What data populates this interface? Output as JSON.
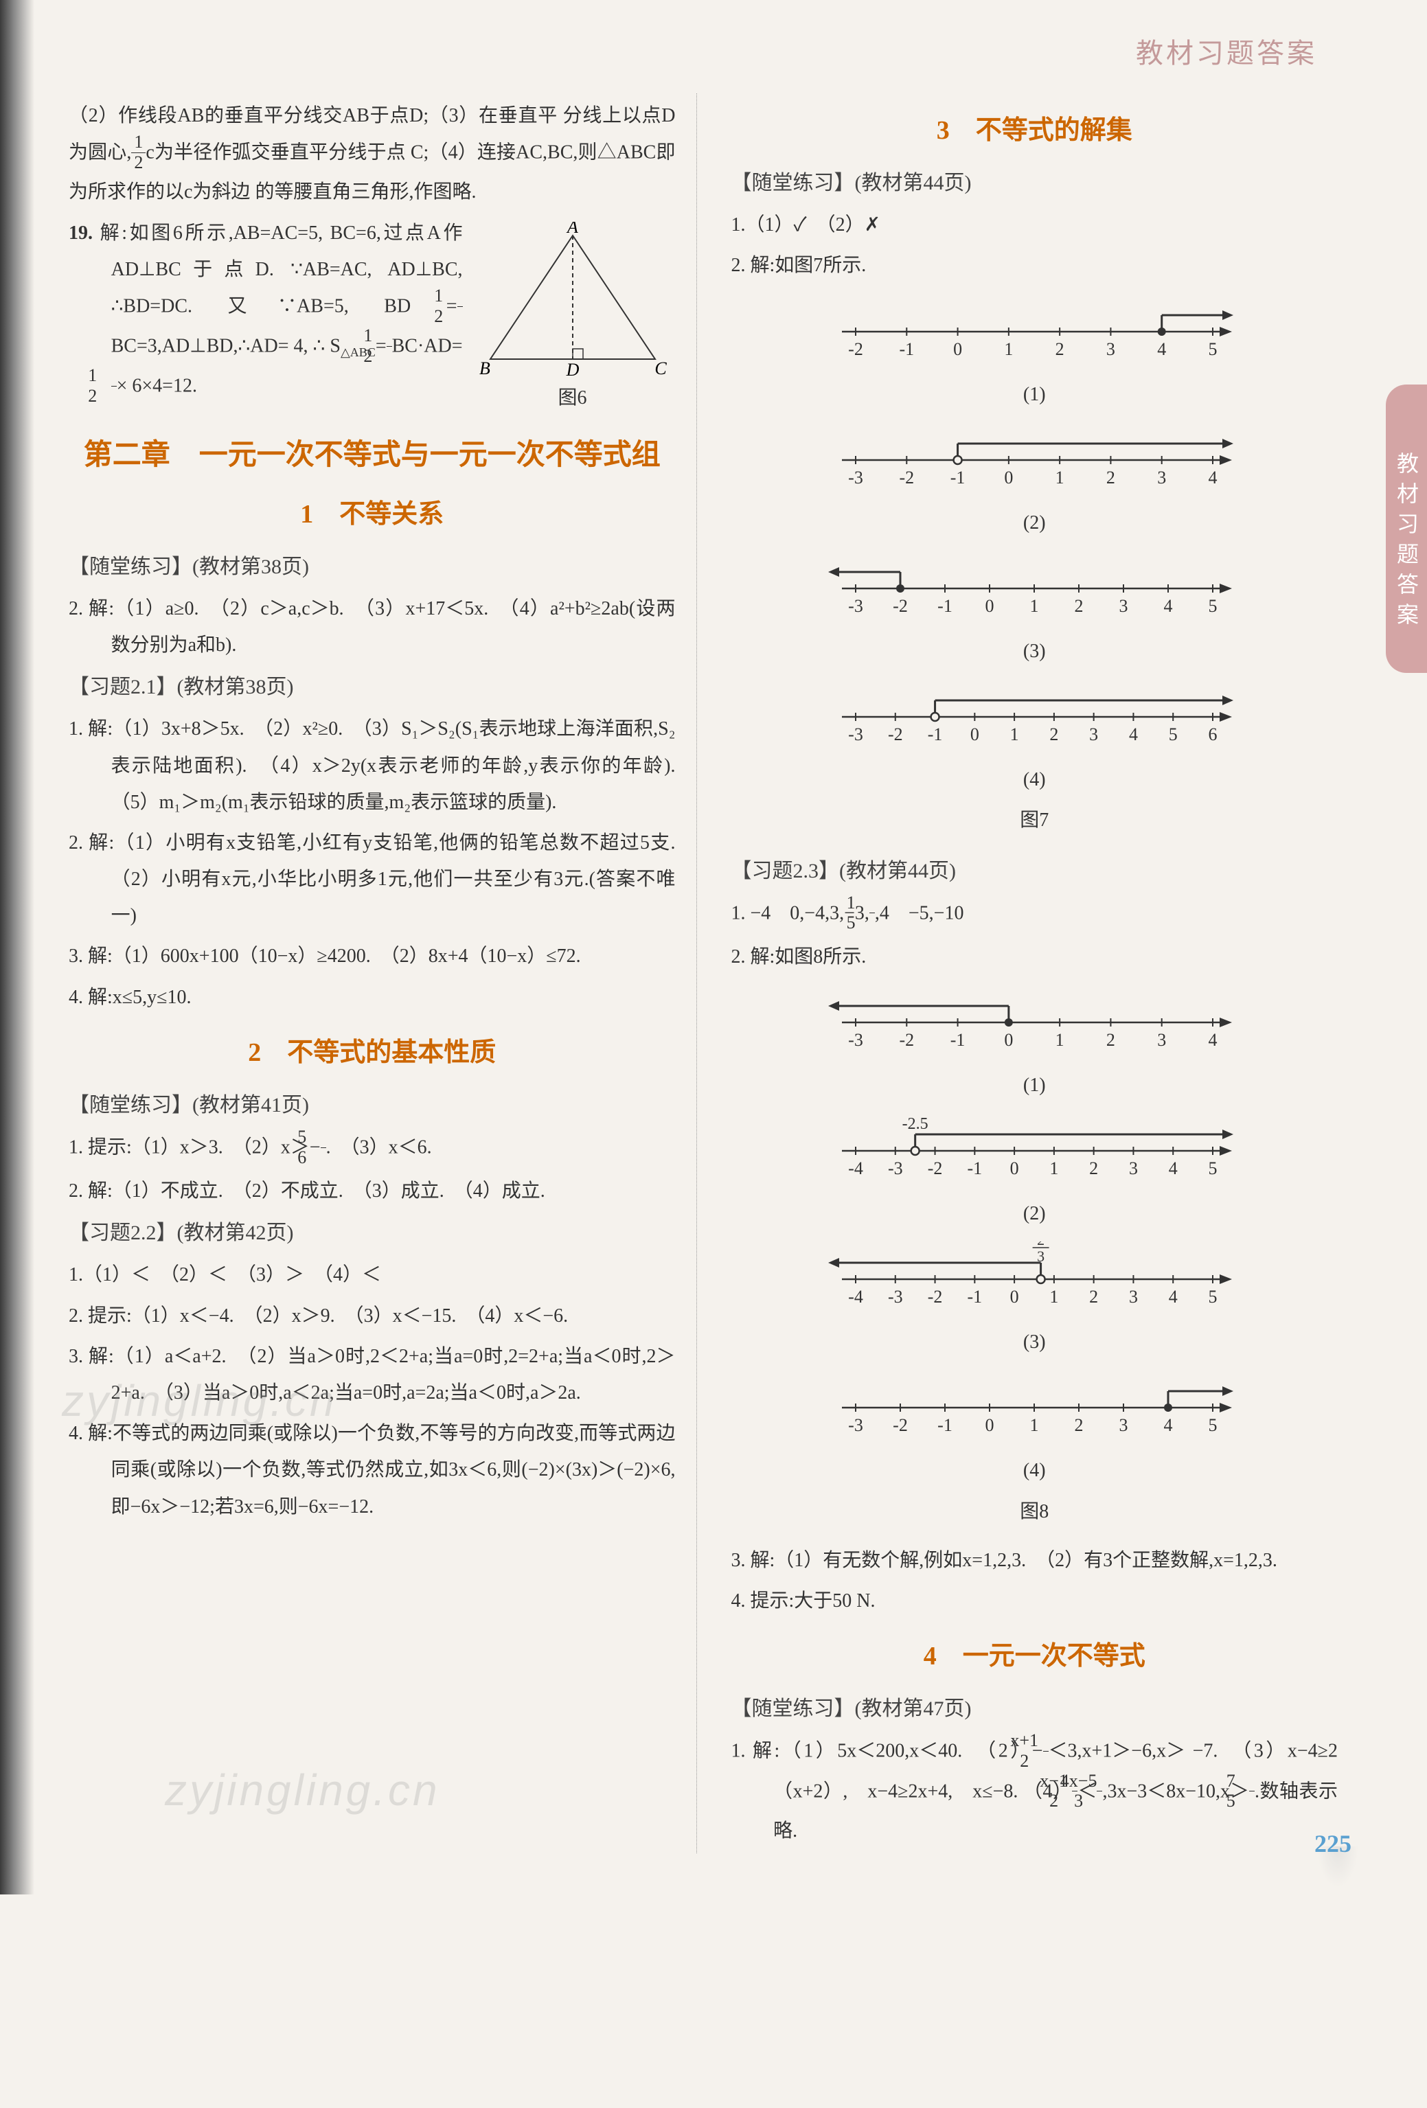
{
  "page": {
    "top_header": "教材习题答案",
    "side_tab": "教材习题答案",
    "page_number": "225",
    "watermark1": "zyjingling.cn",
    "watermark2": "zyjingling.cn"
  },
  "left": {
    "cont_prev": "（2）作线段AB的垂直平分线交AB于点D;（3）在垂直平",
    "cont_part1": "分线上以点D为圆心,",
    "cont_frac1_num": "1",
    "cont_frac1_den": "2",
    "cont_part2": "c为半径作弧交垂直平分线于点",
    "cont_line3": "C;（4）连接AC,BC,则△ABC即为所求作的以c为斜边",
    "cont_line4": "的等腰直角三角形,作图略.",
    "p19_label": "19.",
    "p19_body": "解:如图6所示,AB=AC=5, BC=6,过点A作AD⊥BC于点D. ∵AB=AC, AD⊥BC, ∴BD=DC. 又∵AB=5, BD",
    "p19_body2a": "=",
    "p19_body2_f1n": "1",
    "p19_body2_f1d": "2",
    "p19_body2b": "BC=3,AD⊥BD,∴AD=",
    "p19_body3a": "4, ∴ S",
    "p19_body3_sub": "△ABC",
    "p19_body3b": "=",
    "p19_body3_f1n": "1",
    "p19_body3_f1d": "2",
    "p19_body3c": "BC·AD=",
    "p19_body3_f2n": "1",
    "p19_body3_f2d": "2",
    "p19_body3d": "×",
    "p19_body4": "6×4=12.",
    "fig6_label": "图6",
    "triangle": {
      "A": "A",
      "B": "B",
      "C": "C",
      "D": "D"
    },
    "chapter_title": "第二章　一元一次不等式与一元一次不等式组",
    "sec1_title": "1　不等关系",
    "sec1_sub1": "【随堂练习】(教材第38页)",
    "s1q2": "2. 解:（1）a≥0.　（2）c＞a,c＞b.　（3）x+17＜5x.　（4）a²+b²≥2ab(设两数分别为a和b).",
    "sec1_sub2": "【习题2.1】(教材第38页)",
    "s1b_q1": "1. 解:（1）3x+8＞5x.　（2）x²≥0.　（3）S₁＞S₂(S₁表示地球上海洋面积,S₂表示陆地面积).　（4）x＞2y(x表示老师的年龄,y表示你的年龄).　（5）m₁＞m₂(m₁表示铅球的质量,m₂表示篮球的质量).",
    "s1b_q2": "2. 解:（1）小明有x支铅笔,小红有y支铅笔,他俩的铅笔总数不超过5支.　（2）小明有x元,小华比小明多1元,他们一共至少有3元.(答案不唯一)",
    "s1b_q3": "3. 解:（1）600x+100（10−x）≥4200.　（2）8x+4（10−x）≤72.",
    "s1b_q4": "4. 解:x≤5,y≤10.",
    "sec2_title": "2　不等式的基本性质",
    "sec2_sub1": "【随堂练习】(教材第41页)",
    "s2q1a": "1. 提示:（1）x＞3.　（2）x＞−",
    "s2q1_f_num": "5",
    "s2q1_f_den": "6",
    "s2q1b": ".　（3）x＜6.",
    "s2q2": "2. 解:（1）不成立.　（2）不成立.　（3）成立.　（4）成立.",
    "sec2_sub2": "【习题2.2】(教材第42页)",
    "s2b_q1": "1.（1）＜　（2）＜　（3）＞　（4）＜",
    "s2b_q2": "2. 提示:（1）x＜−4.　（2）x＞9.　（3）x＜−15.　（4）x＜−6.",
    "s2b_q3": "3. 解:（1）a＜a+2.　（2）当a＞0时,2＜2+a;当a=0时,2=2+a;当a＜0时,2＞2+a.　（3）当a＞0时,a＜2a;当a=0时,a=2a;当a＜0时,a＞2a.",
    "s2b_q4": "4. 解:不等式的两边同乘(或除以)一个负数,不等号的方向改变,而等式两边同乘(或除以)一个负数,等式仍然成立,如3x＜6,则(−2)×(3x)＞(−2)×6,即−6x＞−12;若3x=6,则−6x=−12."
  },
  "right": {
    "sec3_title": "3　不等式的解集",
    "sec3_sub1": "【随堂练习】(教材第44页)",
    "s3q1": "1.（1）✓　（2）✗",
    "s3q2": "2. 解:如图7所示.",
    "fig7": {
      "label": "图7",
      "lines": [
        {
          "min": -2,
          "max": 5,
          "mark": 4,
          "closed": true,
          "dir": "right",
          "caption": "(1)"
        },
        {
          "min": -3,
          "max": 4,
          "mark": -1,
          "closed": false,
          "dir": "right",
          "caption": "(2)"
        },
        {
          "min": -3,
          "max": 5,
          "mark": -2,
          "closed": true,
          "dir": "left",
          "caption": "(3)"
        },
        {
          "min": -3,
          "max": 6,
          "mark": -1,
          "closed": false,
          "dir": "right",
          "arrow_to": 6,
          "caption": "(4)"
        }
      ]
    },
    "sec3_sub2": "【习题2.3】(教材第44页)",
    "s3b_q1a": "1. −4　0,−4,3,−3,",
    "s3b_q1_f_num": "1",
    "s3b_q1_f_den": "5",
    "s3b_q1b": ",4　−5,−10",
    "s3b_q2": "2. 解:如图8所示.",
    "fig8": {
      "label": "图8",
      "lines": [
        {
          "min": -3,
          "max": 4,
          "mark": 0,
          "closed": true,
          "dir": "left",
          "caption": "(1)"
        },
        {
          "min": -4,
          "max": 5,
          "mark": -2.5,
          "mark_label": "-2.5",
          "closed": false,
          "dir": "right",
          "caption": "(2)"
        },
        {
          "min": -4,
          "max": 5,
          "mark": 0.666,
          "mark_label_frac_num": "2",
          "mark_label_frac_den": "3",
          "closed": false,
          "dir": "left",
          "caption": "(3)"
        },
        {
          "min": -3,
          "max": 5,
          "mark": 4,
          "closed": true,
          "dir": "right",
          "caption": "(4)"
        }
      ]
    },
    "s3b_q3": "3. 解:（1）有无数个解,例如x=1,2,3.　（2）有3个正整数解,x=1,2,3.",
    "s3b_q4": "4. 提示:大于50 N.",
    "sec4_title": "4　一元一次不等式",
    "sec4_sub1": "【随堂练习】(教材第47页)",
    "s4q1a": "1. 解:（1）5x＜200,x＜40.　（2）−",
    "s4q1_f1_num": "x+1",
    "s4q1_f1_den": "2",
    "s4q1b": "＜3,x+1＞−6,x＞",
    "s4q1c": "−7.　（3）x−4≥2（x+2）,　x−4≥2x+4,　x≤−8.",
    "s4q1d_a": "（4）",
    "s4q1d_f1_num": "x−1",
    "s4q1d_f1_den": "2",
    "s4q1d_b": "＜",
    "s4q1d_f2_num": "4x−5",
    "s4q1d_f2_den": "3",
    "s4q1d_c": ",3x−3＜8x−10,x＞",
    "s4q1d_f3_num": "7",
    "s4q1d_f3_den": "5",
    "s4q1d_d": ".数轴表示略."
  },
  "colors": {
    "heading": "#cc6600",
    "text": "#333333",
    "tab_bg": "#d4a5a5",
    "page_num": "#5aa0d0"
  }
}
